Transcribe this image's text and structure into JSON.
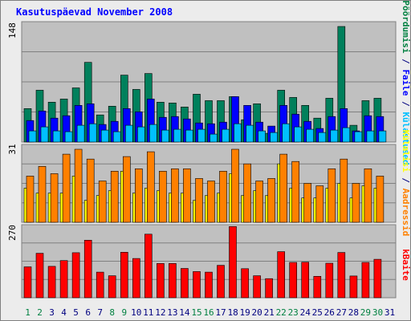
{
  "chart_data": [
    {
      "type": "bar",
      "title": "Kasutuspäevad November 2008",
      "panel": "top",
      "y_tick_label": "148",
      "ylim": [
        0,
        148
      ],
      "categories": [
        "1",
        "2",
        "3",
        "4",
        "5",
        "6",
        "7",
        "8",
        "9",
        "10",
        "11",
        "12",
        "13",
        "14",
        "15",
        "16",
        "17",
        "18",
        "19",
        "20",
        "21",
        "22",
        "23",
        "24",
        "25",
        "26",
        "27",
        "28",
        "29",
        "30",
        "31"
      ],
      "axis_label_parts": [
        {
          "text": "Pöördumisi",
          "color": "#008040"
        },
        {
          "text": " / ",
          "color": "#000080"
        },
        {
          "text": "Faile",
          "color": "#0000ff"
        },
        {
          "text": " / ",
          "color": "#000080"
        },
        {
          "text": "Külastused",
          "color": "#00bfff"
        }
      ],
      "series": [
        {
          "name": "Pöördumisi",
          "color": "#00805c",
          "values": [
            42,
            65,
            50,
            54,
            68,
            100,
            34,
            45,
            84,
            66,
            86,
            50,
            49,
            44,
            60,
            52,
            52,
            57,
            28,
            48,
            11,
            65,
            56,
            46,
            30,
            55,
            145,
            21,
            52,
            55,
            0
          ]
        },
        {
          "name": "Faile",
          "color": "#0000ff",
          "values": [
            27,
            39,
            30,
            33,
            46,
            48,
            22,
            26,
            42,
            38,
            54,
            31,
            32,
            29,
            24,
            23,
            25,
            57,
            46,
            25,
            20,
            46,
            35,
            26,
            17,
            32,
            42,
            14,
            33,
            32,
            0
          ]
        },
        {
          "name": "Külastused",
          "color": "#00bfff",
          "values": [
            14,
            19,
            14,
            13,
            21,
            23,
            15,
            13,
            21,
            19,
            22,
            15,
            16,
            15,
            16,
            10,
            16,
            23,
            21,
            14,
            12,
            23,
            19,
            16,
            12,
            15,
            18,
            13,
            14,
            14,
            0
          ]
        }
      ]
    },
    {
      "type": "bar",
      "panel": "middle",
      "y_tick_label": "31",
      "ylim": [
        0,
        31
      ],
      "categories": [
        "1",
        "2",
        "3",
        "4",
        "5",
        "6",
        "7",
        "8",
        "9",
        "10",
        "11",
        "12",
        "13",
        "14",
        "15",
        "16",
        "17",
        "18",
        "19",
        "20",
        "21",
        "22",
        "23",
        "24",
        "25",
        "26",
        "27",
        "28",
        "29",
        "30",
        "31"
      ],
      "axis_label_parts": [
        {
          "text": "Külalisi",
          "color": "#ffff00"
        },
        {
          "text": " / ",
          "color": "#000080"
        },
        {
          "text": "Aadressid",
          "color": "#ff8000"
        }
      ],
      "series": [
        {
          "name": "Külalisi",
          "color": "#ffff00",
          "values": [
            14,
            12,
            12,
            12,
            19,
            9,
            11,
            13,
            21,
            12,
            14,
            13,
            12,
            12,
            9,
            11,
            12,
            20,
            11,
            13,
            11,
            24,
            14,
            10,
            10,
            14,
            16,
            10,
            15,
            14,
            0
          ]
        },
        {
          "name": "Aadressid",
          "color": "#ff8000",
          "values": [
            19,
            23,
            20,
            28,
            30,
            26,
            17,
            21,
            27,
            22,
            29,
            21,
            22,
            22,
            18,
            17,
            21,
            30,
            24,
            17,
            18,
            28,
            25,
            16,
            15,
            22,
            26,
            16,
            22,
            19,
            0
          ]
        }
      ]
    },
    {
      "type": "bar",
      "panel": "bottom",
      "y_tick_label": "270",
      "ylim": [
        0,
        270
      ],
      "categories": [
        "1",
        "2",
        "3",
        "4",
        "5",
        "6",
        "7",
        "8",
        "9",
        "10",
        "11",
        "12",
        "13",
        "14",
        "15",
        "16",
        "17",
        "18",
        "19",
        "20",
        "21",
        "22",
        "23",
        "24",
        "25",
        "26",
        "27",
        "28",
        "29",
        "30",
        "31"
      ],
      "axis_label_parts": [
        {
          "text": "kBaite",
          "color": "#ff0000"
        }
      ],
      "series": [
        {
          "name": "kBaite",
          "color": "#ff0000",
          "values": [
            118,
            170,
            120,
            142,
            172,
            220,
            98,
            84,
            174,
            150,
            243,
            131,
            131,
            112,
            100,
            98,
            124,
            272,
            111,
            84,
            73,
            176,
            135,
            136,
            82,
            132,
            173,
            83,
            135,
            147,
            0
          ]
        }
      ]
    }
  ],
  "x_axis": {
    "labels": [
      "1",
      "2",
      "3",
      "4",
      "5",
      "6",
      "7",
      "8",
      "9",
      "10",
      "11",
      "12",
      "13",
      "14",
      "15",
      "16",
      "17",
      "18",
      "19",
      "20",
      "21",
      "22",
      "23",
      "24",
      "25",
      "26",
      "27",
      "28",
      "29",
      "30",
      "31"
    ],
    "weekend_color": "#008040",
    "weekday_color": "#000080",
    "weekend_days": [
      "1",
      "2",
      "8",
      "9",
      "15",
      "16",
      "22",
      "23",
      "29",
      "30"
    ]
  },
  "colors": {
    "background": "#ececec",
    "plot_background": "#c0c0c0",
    "title": "#0000ff",
    "grid": "#808080"
  }
}
